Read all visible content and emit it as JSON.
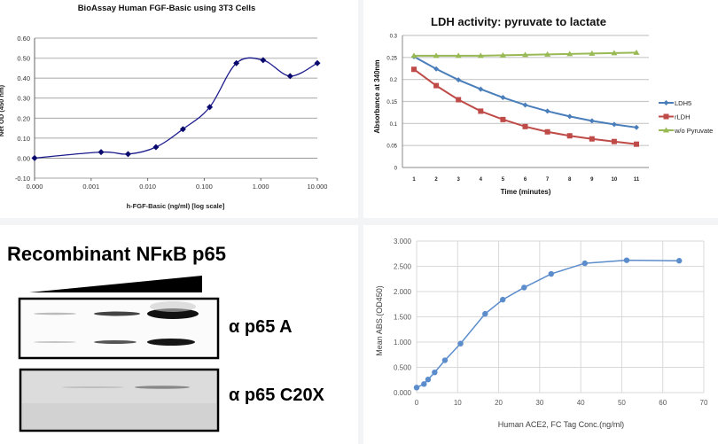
{
  "chart_data": [
    {
      "type": "line",
      "title": "BioAssay Human FGF-Basic using 3T3 Cells",
      "xlabel": "h-FGF-Basic (ng/ml) [log scale]",
      "ylabel": "Net OD (450 nm)",
      "x_scale": "log",
      "x_ticks": [
        0.0001,
        0.001,
        0.01,
        0.1,
        1,
        10
      ],
      "x_tick_labels": [
        "0.000",
        "0.001",
        "0.010",
        "0.100",
        "1.000",
        "10.000"
      ],
      "ylim": [
        -0.1,
        0.6
      ],
      "y_ticks": [
        -0.1,
        0.0,
        0.1,
        0.2,
        0.3,
        0.4,
        0.5,
        0.6
      ],
      "y_tick_labels": [
        "-0.10",
        "0.00",
        "0.10",
        "0.20",
        "0.30",
        "0.40",
        "0.50",
        "0.60"
      ],
      "grid": true,
      "smooth": true,
      "color": "#1a1a8c",
      "x": [
        0.0001,
        0.0015,
        0.0045,
        0.014,
        0.042,
        0.125,
        0.37,
        1.1,
        3.3,
        10
      ],
      "y": [
        0.0,
        0.03,
        0.02,
        0.055,
        0.145,
        0.255,
        0.475,
        0.49,
        0.41,
        0.475
      ]
    },
    {
      "type": "line",
      "title": "LDH activity: pyruvate to lactate",
      "xlabel": "Time (minutes)",
      "ylabel": "Absorbance at 340nm",
      "categories": [
        "1",
        "2",
        "3",
        "4",
        "5",
        "6",
        "7",
        "8",
        "9",
        "10",
        "11"
      ],
      "ylim": [
        0,
        0.3
      ],
      "y_ticks": [
        0,
        0.05,
        0.1,
        0.15,
        0.2,
        0.25,
        0.3
      ],
      "y_tick_labels": [
        "0",
        "0.05",
        "0.1",
        "0.15",
        "0.2",
        "0.25",
        "0.3"
      ],
      "grid": true,
      "legend": "right",
      "series": [
        {
          "name": "LDH5",
          "color": "#4a7ebb",
          "marker": "diamond",
          "values": [
            0.252,
            0.224,
            0.199,
            0.178,
            0.159,
            0.142,
            0.128,
            0.116,
            0.106,
            0.098,
            0.091
          ]
        },
        {
          "name": "rLDH",
          "color": "#be4b48",
          "marker": "square",
          "values": [
            0.223,
            0.186,
            0.154,
            0.128,
            0.109,
            0.093,
            0.081,
            0.072,
            0.065,
            0.059,
            0.053
          ]
        },
        {
          "name": "w/o Pyruvate",
          "color": "#98b954",
          "marker": "triangle",
          "values": [
            0.254,
            0.254,
            0.254,
            0.254,
            0.255,
            0.256,
            0.257,
            0.258,
            0.259,
            0.26,
            0.261
          ]
        }
      ]
    },
    {
      "type": "line",
      "xlabel": "Human ACE2, FC Tag Conc.(ng/ml)",
      "ylabel": "Mean ABS.(OD450)",
      "xlim": [
        0,
        70
      ],
      "x_ticks": [
        0,
        10,
        20,
        30,
        40,
        50,
        60,
        70
      ],
      "x_tick_labels": [
        "0",
        "10",
        "20",
        "30",
        "40",
        "50",
        "60",
        "70"
      ],
      "ylim": [
        0,
        3.0
      ],
      "y_ticks": [
        0,
        0.5,
        1.0,
        1.5,
        2.0,
        2.5,
        3.0
      ],
      "y_tick_labels": [
        "0.000",
        "0.500",
        "1.000",
        "1.500",
        "2.000",
        "2.500",
        "3.000"
      ],
      "grid": true,
      "color": "#5b8ccb",
      "x": [
        0,
        1.8,
        2.8,
        4.4,
        6.9,
        10.7,
        16.7,
        21,
        26.2,
        32.8,
        41,
        51.2,
        64
      ],
      "y": [
        0.1,
        0.17,
        0.26,
        0.4,
        0.64,
        0.97,
        1.56,
        1.84,
        2.08,
        2.35,
        2.56,
        2.62,
        2.61
      ]
    }
  ],
  "blot": {
    "title": "Recombinant NFκB p65",
    "panels": [
      {
        "label": "α p65 A"
      },
      {
        "label": "α p65 C20X"
      }
    ]
  }
}
